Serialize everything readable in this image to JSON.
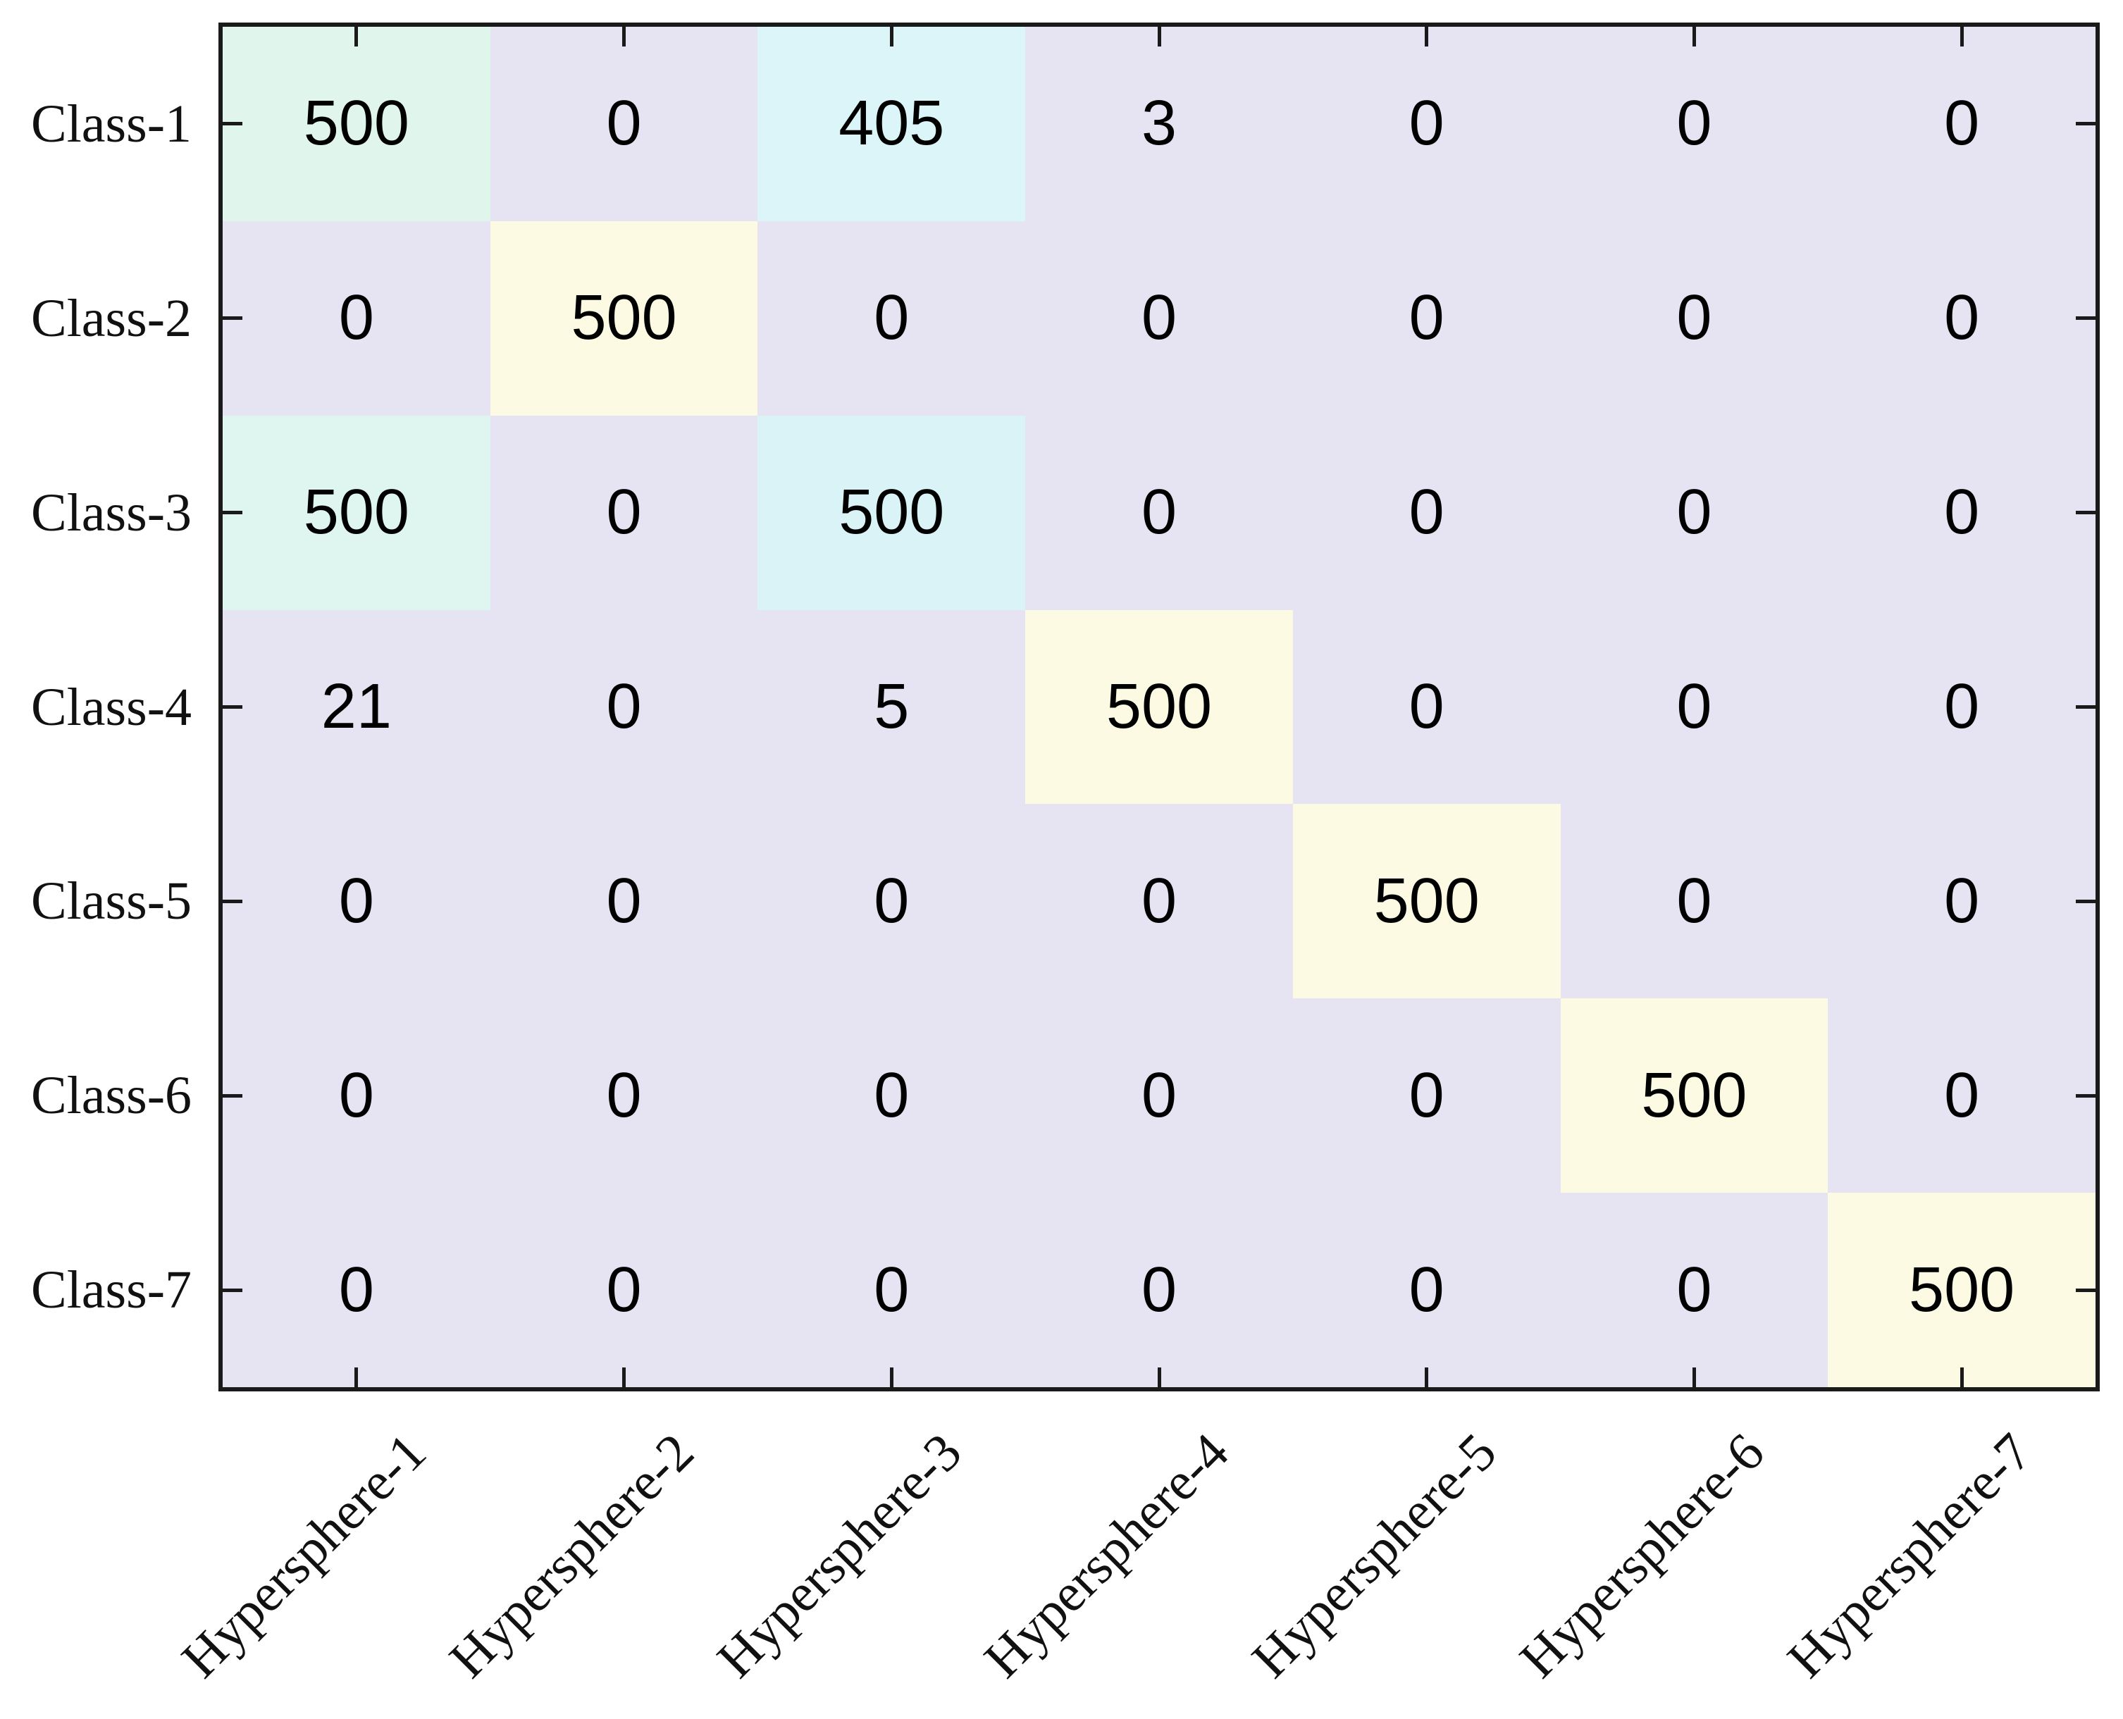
{
  "figure": {
    "background": "#ffffff",
    "border_color": "#1a1a1a",
    "text_color": "#111111",
    "value_text_color": "#000000"
  },
  "chart_data": {
    "type": "heatmap",
    "title": "",
    "xlabel": "",
    "ylabel": "",
    "legend": "none",
    "grid": "off",
    "x_tick_label_rotation_deg": 45,
    "tick_direction": "in",
    "tick_sides": [
      "top",
      "bottom",
      "left",
      "right"
    ],
    "row_labels": [
      "Class-1",
      "Class-2",
      "Class-3",
      "Class-4",
      "Class-5",
      "Class-6",
      "Class-7"
    ],
    "col_labels": [
      "Hypersphere-1",
      "Hypersphere-2",
      "Hypersphere-3",
      "Hypersphere-4",
      "Hypersphere-5",
      "Hypersphere-6",
      "Hypersphere-7"
    ],
    "values": [
      [
        500,
        0,
        405,
        3,
        0,
        0,
        0
      ],
      [
        0,
        500,
        0,
        0,
        0,
        0,
        0
      ],
      [
        500,
        0,
        500,
        0,
        0,
        0,
        0
      ],
      [
        21,
        0,
        5,
        500,
        0,
        0,
        0
      ],
      [
        0,
        0,
        0,
        0,
        500,
        0,
        0
      ],
      [
        0,
        0,
        0,
        0,
        0,
        500,
        0
      ],
      [
        0,
        0,
        0,
        0,
        0,
        0,
        500
      ]
    ],
    "palette": {
      "low_lavender": "#e6e3f2",
      "diagonal_yellow": "#fcfae2",
      "mint_green": "#e0f5ec",
      "mint_cyan": "#def5f0",
      "pale_cyan_blue": "#dcf5f8",
      "pale_cyan": "#d9f3f6"
    },
    "cell_colors": [
      [
        "#e0f5ec",
        "#e6e3f2",
        "#dcf5f8",
        "#e6e3f2",
        "#e6e3f2",
        "#e6e3f2",
        "#e6e3f2"
      ],
      [
        "#e6e3f2",
        "#fcfae2",
        "#e6e3f2",
        "#e6e3f2",
        "#e6e3f2",
        "#e6e3f2",
        "#e6e3f2"
      ],
      [
        "#def5f0",
        "#e6e3f2",
        "#d9f3f6",
        "#e6e3f2",
        "#e6e3f2",
        "#e6e3f2",
        "#e6e3f2"
      ],
      [
        "#e6e3f2",
        "#e6e3f2",
        "#e6e3f2",
        "#fcfae2",
        "#e6e3f2",
        "#e6e3f2",
        "#e6e3f2"
      ],
      [
        "#e6e3f2",
        "#e6e3f2",
        "#e6e3f2",
        "#e6e3f2",
        "#fcfae2",
        "#e6e3f2",
        "#e6e3f2"
      ],
      [
        "#e6e3f2",
        "#e6e3f2",
        "#e6e3f2",
        "#e6e3f2",
        "#e6e3f2",
        "#fcfae2",
        "#e6e3f2"
      ],
      [
        "#e6e3f2",
        "#e6e3f2",
        "#e6e3f2",
        "#e6e3f2",
        "#e6e3f2",
        "#e6e3f2",
        "#fcfae2"
      ]
    ]
  }
}
